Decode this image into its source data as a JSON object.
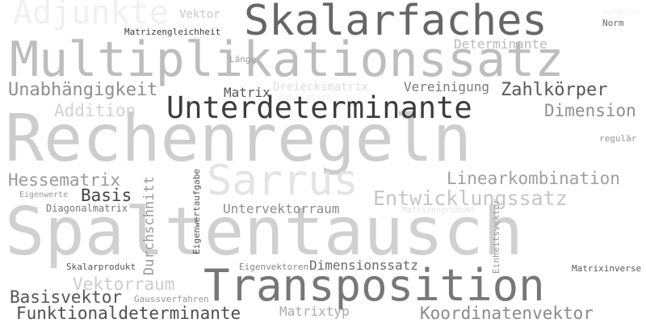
{
  "words": [
    {
      "text": "Spaltentausch",
      "color": "#d0d0d0"
    },
    {
      "text": "Rechenregeln",
      "color": "#cdcdcd"
    },
    {
      "text": "Multiplikationssatz",
      "color": "#bdbdbd"
    },
    {
      "text": "Skalarfaches",
      "color": "#666666"
    },
    {
      "text": "Transposition",
      "color": "#777777"
    },
    {
      "text": "Unterdeterminante",
      "color": "#3c3c3c"
    },
    {
      "text": "Adjunkte",
      "color": "#f0f0f0"
    },
    {
      "text": "Sarrus",
      "color": "#e4e4e4"
    },
    {
      "text": "Entwicklungssatz",
      "color": "#c6c6c6"
    },
    {
      "text": "Linearkombination",
      "color": "#9f9f9f"
    },
    {
      "text": "Funktionaldeterminante",
      "color": "#4f4f4f"
    },
    {
      "text": "Koordinatenvektor",
      "color": "#8a8a8a"
    },
    {
      "text": "Unabhängigkeit",
      "color": "#8e8e8e"
    },
    {
      "text": "Zahlkörper",
      "color": "#575757"
    },
    {
      "text": "Hessematrix",
      "color": "#9a9a9a"
    },
    {
      "text": "Basisvektor",
      "color": "#555555"
    },
    {
      "text": "Vektorraum",
      "color": "#cccccc"
    },
    {
      "text": "Dimension",
      "color": "#8f8f8f"
    },
    {
      "text": "Addition",
      "color": "#d2d2d2"
    },
    {
      "text": "Basis",
      "color": "#444444"
    },
    {
      "text": "Untervektorraum",
      "color": "#8d8d8d"
    },
    {
      "text": "Dimensionssatz",
      "color": "#696969"
    },
    {
      "text": "Vereinigung",
      "color": "#7a7a7a"
    },
    {
      "text": "Matrixtyp",
      "color": "#aaaaaa"
    },
    {
      "text": "Durchschnitt",
      "color": "#9a9a9a"
    },
    {
      "text": "Matrix",
      "color": "#555555"
    },
    {
      "text": "Dreiecksmatrix",
      "color": "#dddddd"
    },
    {
      "text": "Determinante",
      "color": "#bbbbbb"
    },
    {
      "text": "Diagonalmatrix",
      "color": "#777777"
    },
    {
      "text": "Vektor",
      "color": "#c8c8c8"
    },
    {
      "text": "Matrizengleichheit",
      "color": "#3d3d3d"
    },
    {
      "text": "Länge",
      "color": "#999999"
    },
    {
      "text": "Norm",
      "color": "#666666"
    },
    {
      "text": "regulär",
      "color": "#999999"
    },
    {
      "text": "Eigenwerte",
      "color": "#999999"
    },
    {
      "text": "Matrizenprodukt",
      "color": "#e2e2e2"
    },
    {
      "text": "euklidisch",
      "color": "#eeeeee"
    },
    {
      "text": "Skalarprodukt",
      "color": "#555555"
    },
    {
      "text": "Eigenvektoren",
      "color": "#888888"
    },
    {
      "text": "Matrixinverse",
      "color": "#555555"
    },
    {
      "text": "Gaussverfahren",
      "color": "#999999"
    },
    {
      "text": "Eigenwertaufgabe",
      "color": "#555555"
    },
    {
      "text": "Einheitsvektor",
      "color": "#999999"
    },
    {
      "text": "singulär",
      "color": "#f0f0f0"
    }
  ]
}
